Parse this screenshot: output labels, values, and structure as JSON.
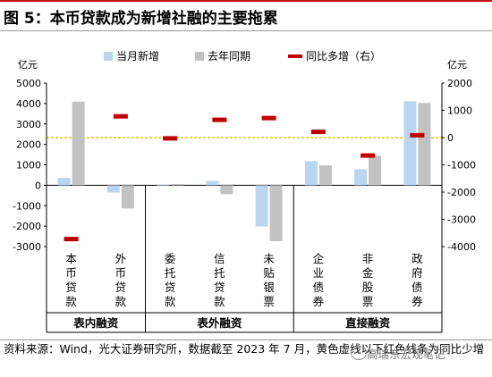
{
  "title": "图 5：本币贷款成为新增社融的主要拖累",
  "source_note": "资料来源：Wind，光大证券研究所，数据截至 2023 年 7 月，黄色虚线以下红色线条为同比少增",
  "watermark": "高瑞东宏观笔记",
  "colors": {
    "current": "#b9d6ee",
    "last_year": "#c2c2c2",
    "yoy": "#c00000",
    "dashed": "#f0c000",
    "title_accent": "#c0151b"
  },
  "chart_data": {
    "type": "bar",
    "left_unit": "亿元",
    "right_unit": "亿元",
    "left_ylim": [
      -3000,
      5000
    ],
    "left_ticks": [
      -3000,
      -2000,
      -1000,
      0,
      1000,
      2000,
      3000,
      4000,
      5000
    ],
    "right_ylim": [
      -4000,
      2000
    ],
    "right_ticks": [
      -4000,
      -3000,
      -2000,
      -1000,
      0,
      1000,
      2000
    ],
    "categories": [
      [
        "本",
        "币",
        "贷",
        "款"
      ],
      [
        "外",
        "币",
        "贷",
        "款"
      ],
      [
        "委",
        "托",
        "贷",
        "款"
      ],
      [
        "信",
        "托",
        "贷",
        "款"
      ],
      [
        "未",
        "贴",
        "银",
        "票"
      ],
      [
        "企",
        "业",
        "债",
        "券"
      ],
      [
        "非",
        "金",
        "股",
        "票"
      ],
      [
        "政",
        "府",
        "债",
        "券"
      ]
    ],
    "groups": [
      {
        "label": "表内融资",
        "from": 0,
        "to": 1
      },
      {
        "label": "表外融资",
        "from": 2,
        "to": 4
      },
      {
        "label": "直接融资",
        "from": 5,
        "to": 7
      }
    ],
    "series": [
      {
        "name": "当月新增",
        "axis": "left",
        "values": [
          364,
          -357,
          30,
          218,
          -2020,
          1180,
          789,
          4109
        ]
      },
      {
        "name": "去年同期",
        "axis": "left",
        "values": [
          4088,
          -1137,
          59,
          -434,
          -2736,
          970,
          1449,
          4023
        ]
      },
      {
        "name": "同比多增（右）",
        "axis": "right",
        "values": [
          -3724,
          780,
          -29,
          652,
          716,
          210,
          -660,
          86
        ]
      }
    ]
  }
}
